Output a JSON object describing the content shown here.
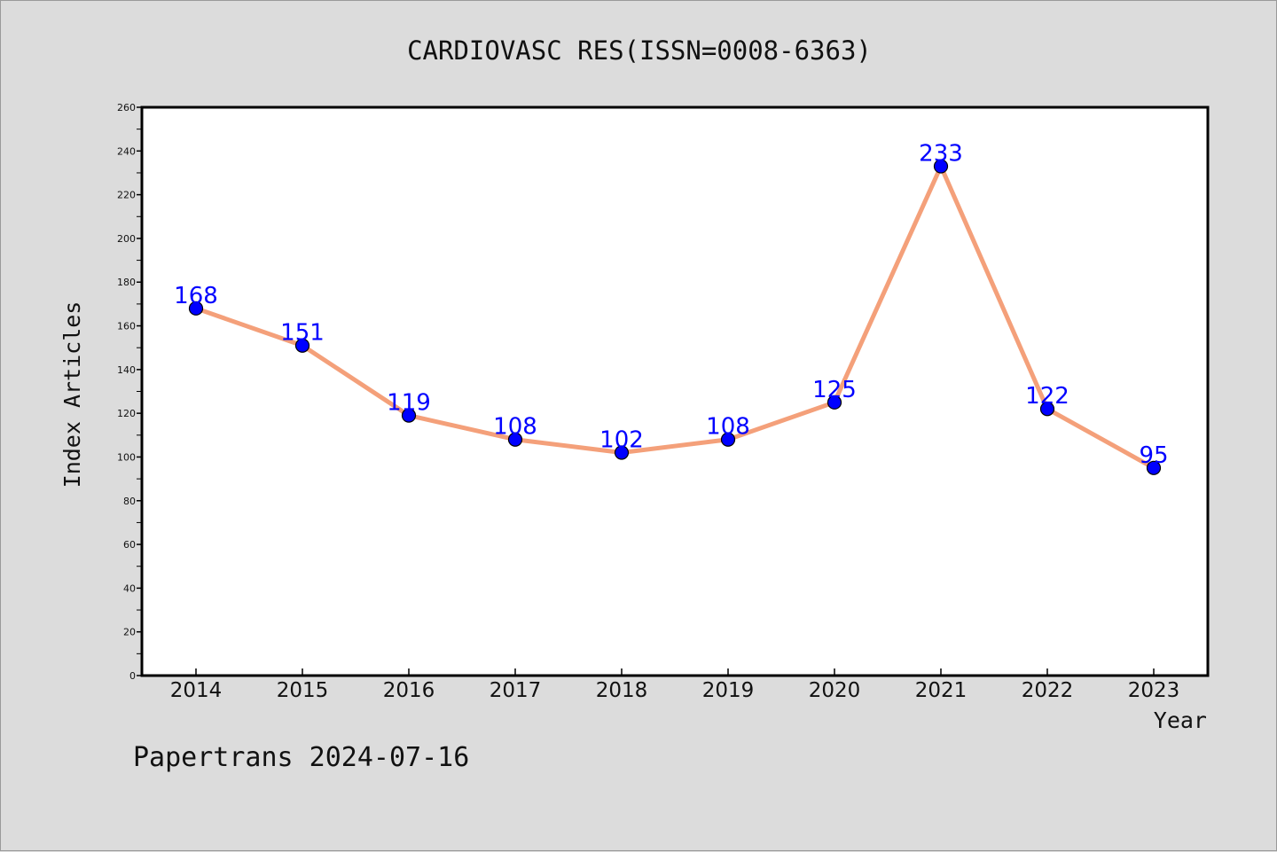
{
  "footer": {
    "text": "Papertrans 2024-07-16"
  },
  "chart_data": {
    "type": "line",
    "title": "CARDIOVASC RES(ISSN=0008-6363)",
    "xlabel": "Year",
    "ylabel": "Index Articles",
    "categories": [
      "2014",
      "2015",
      "2016",
      "2017",
      "2018",
      "2019",
      "2020",
      "2021",
      "2022",
      "2023"
    ],
    "values": [
      168,
      151,
      119,
      108,
      102,
      108,
      125,
      233,
      122,
      95
    ],
    "ylim": [
      0,
      260
    ],
    "yticks": [
      0,
      20,
      40,
      60,
      80,
      100,
      120,
      140,
      160,
      180,
      200,
      220,
      240,
      260
    ],
    "line_color": "#f4a07a",
    "marker_color": "#0000ff",
    "label_color": "#0000ff",
    "background": "#dcdcdc",
    "plot_background": "#ffffff",
    "grid": false,
    "legend": "none"
  }
}
